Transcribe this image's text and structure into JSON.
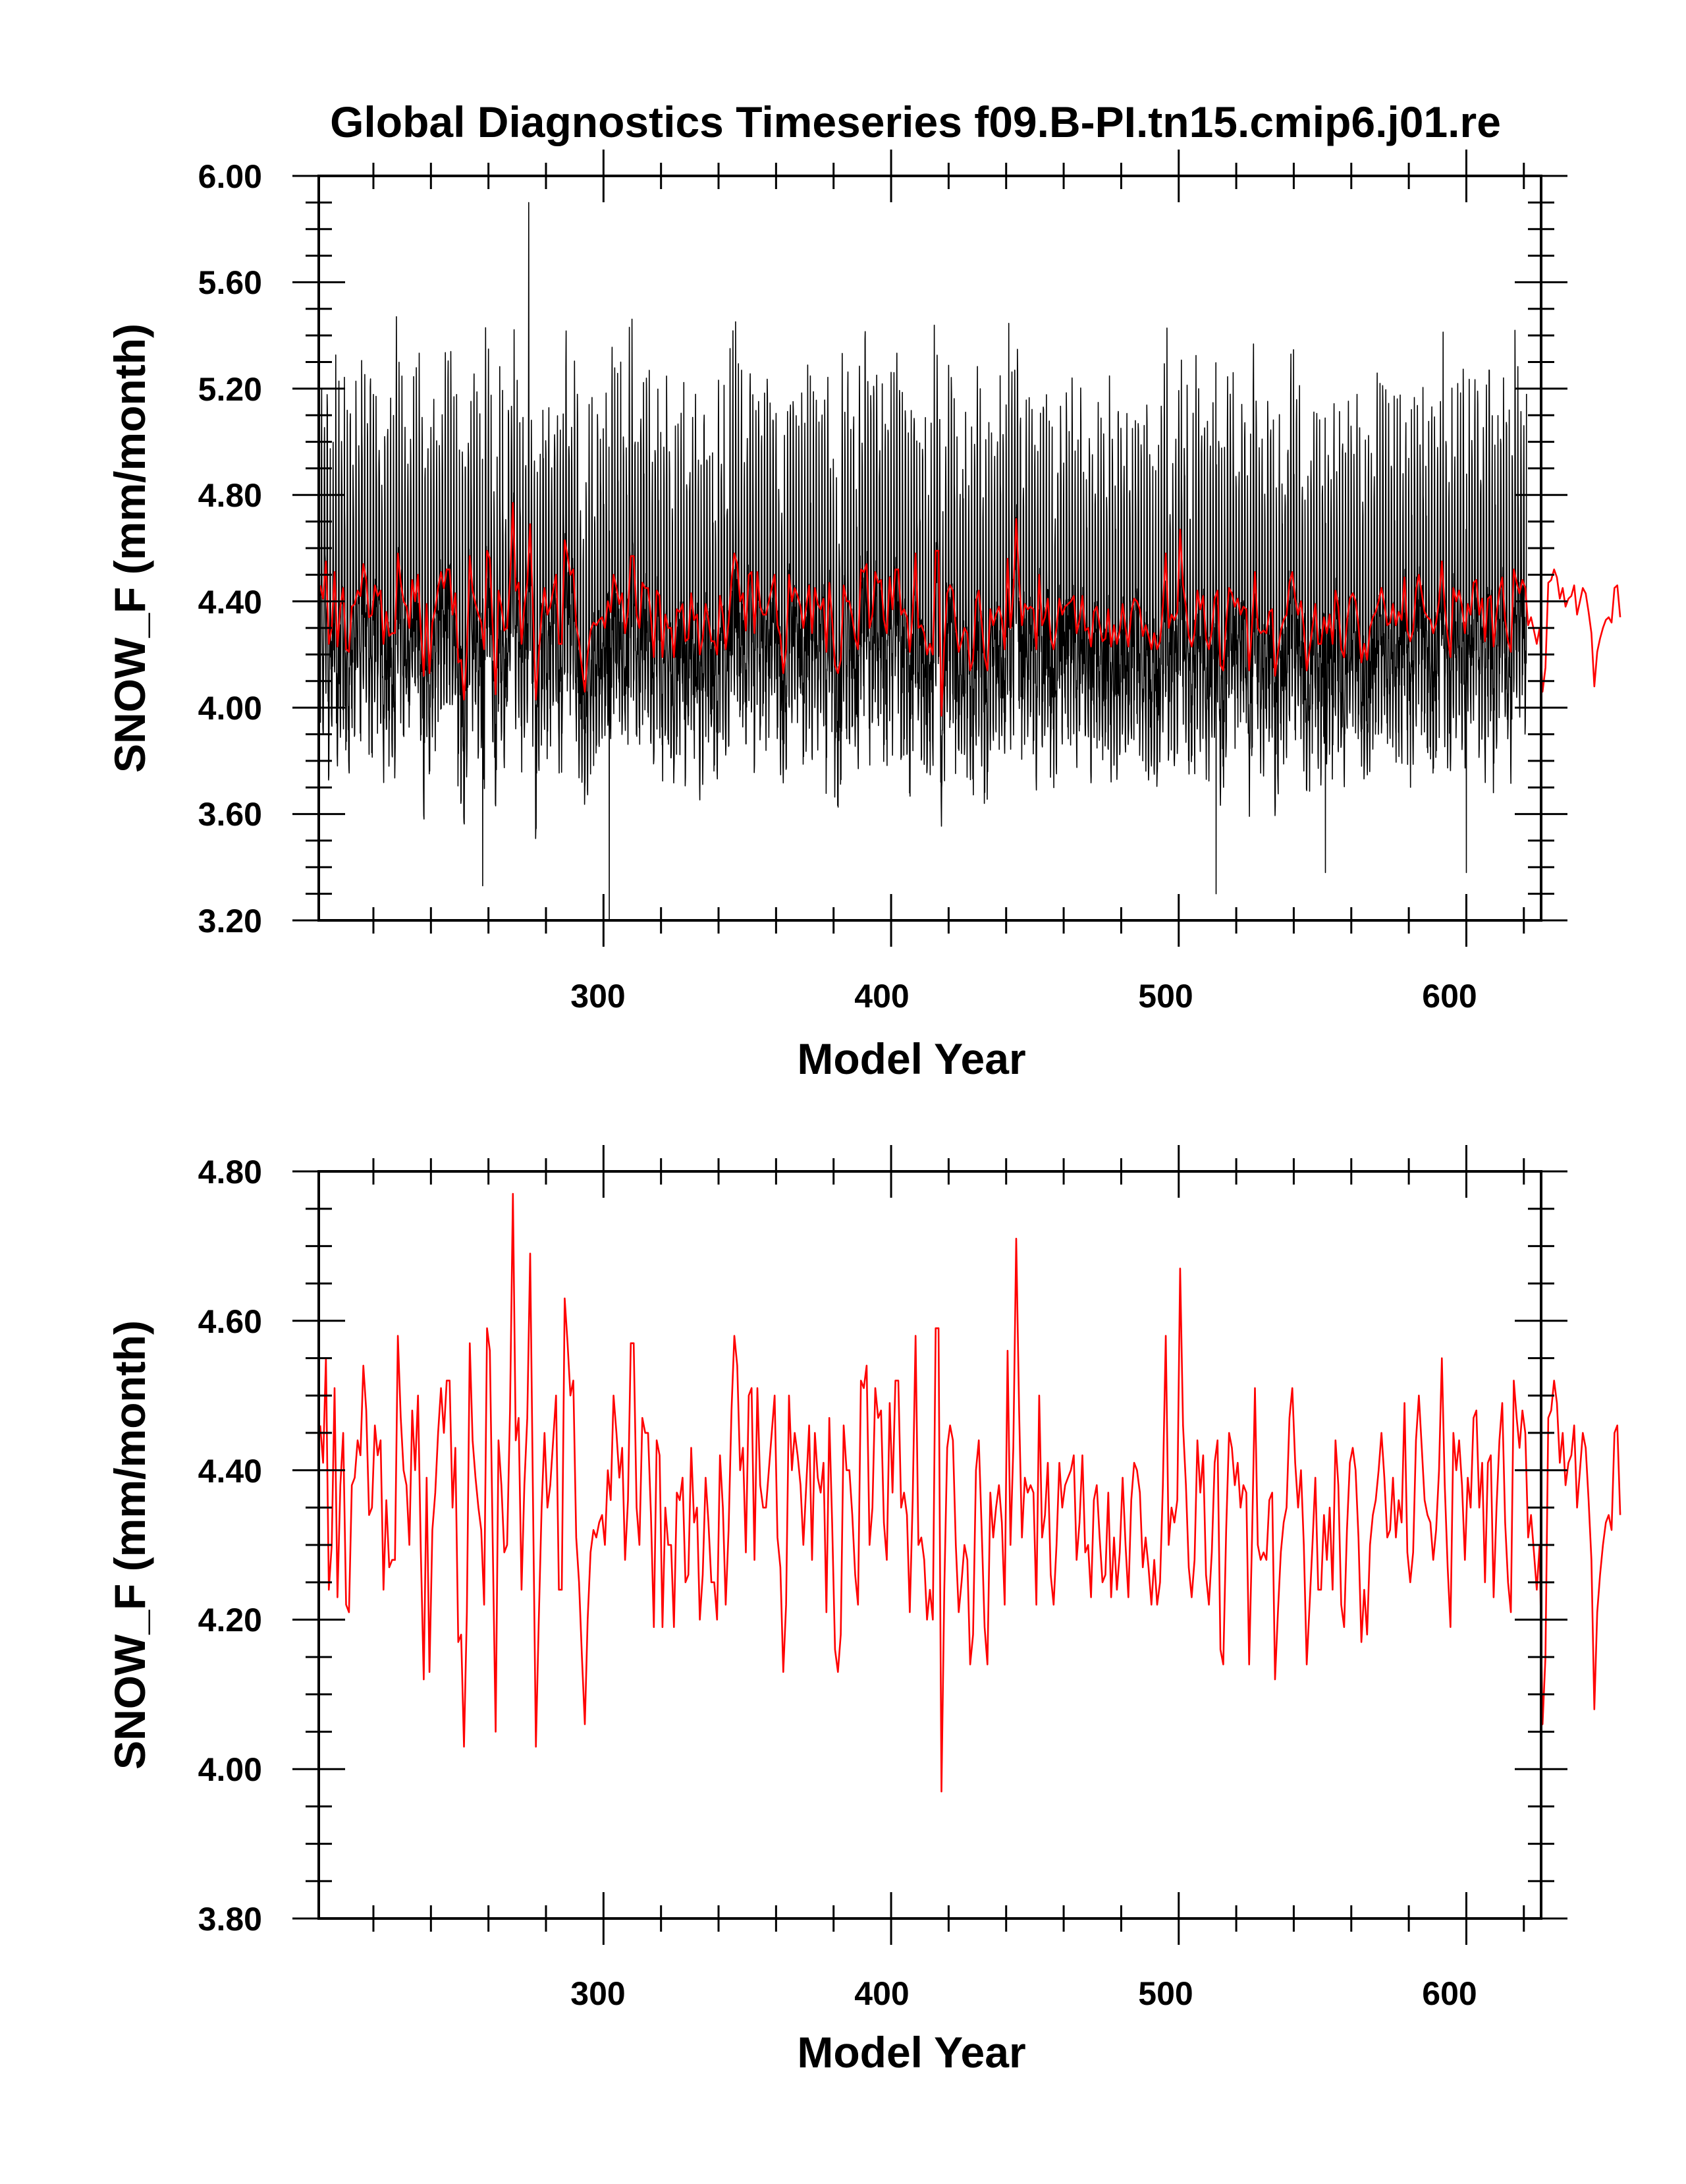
{
  "chart_data": [
    {
      "type": "line",
      "title": "Global Diagnostics Timeseries f09.B-PI.tn15.cmip6.j01.re",
      "xlabel": "Model Year",
      "ylabel": "SNOW_F (mm/month)",
      "xlim": [
        201,
        626
      ],
      "ylim": [
        3.2,
        6.0
      ],
      "xticks": [
        "300",
        "400",
        "500",
        "600"
      ],
      "yticks": [
        "3.20",
        "3.60",
        "4.00",
        "4.40",
        "4.80",
        "5.20",
        "5.60",
        "6.00"
      ],
      "grid": false,
      "series": [
        {
          "kind": "monthly",
          "color": "#000000",
          "x_start": 201,
          "x_end": 621,
          "mean": 4.33,
          "typical_min": 3.95,
          "typical_max": 5.25,
          "notable_points": [
            {
              "x": 274,
              "y": 5.9
            },
            {
              "x": 302,
              "y": 3.2
            },
            {
              "x": 258,
              "y": 3.33
            },
            {
              "x": 513,
              "y": 3.3
            },
            {
              "x": 551,
              "y": 3.38
            },
            {
              "x": 600,
              "y": 3.38
            }
          ]
        },
        {
          "kind": "annual",
          "color": "#ff0000",
          "x_start": 201,
          "values": [
            4.46,
            4.41,
            4.55,
            4.24,
            4.3,
            4.51,
            4.23,
            4.38,
            4.45,
            4.22,
            4.21,
            4.38,
            4.39,
            4.44,
            4.42,
            4.54,
            4.48,
            4.34,
            4.35,
            4.46,
            4.42,
            4.44,
            4.24,
            4.36,
            4.27,
            4.28,
            4.28,
            4.58,
            4.47,
            4.4,
            4.38,
            4.3,
            4.48,
            4.4,
            4.5,
            4.29,
            4.12,
            4.39,
            4.13,
            4.32,
            4.37,
            4.45,
            4.51,
            4.45,
            4.52,
            4.52,
            4.35,
            4.43,
            4.17,
            4.18,
            4.03,
            4.21,
            4.57,
            4.44,
            4.39,
            4.35,
            4.32,
            4.22,
            4.59,
            4.56,
            4.3,
            4.05,
            4.44,
            4.38,
            4.29,
            4.3,
            4.48,
            4.77,
            4.44,
            4.47,
            4.24,
            4.38,
            4.47,
            4.69,
            4.36,
            4.03,
            4.2,
            4.35,
            4.45,
            4.35,
            4.38,
            4.44,
            4.5,
            4.24,
            4.24,
            4.63,
            4.57,
            4.5,
            4.52,
            4.31,
            4.25,
            4.15,
            4.06,
            4.2,
            4.29,
            4.32,
            4.31,
            4.33,
            4.34,
            4.3,
            4.4,
            4.36,
            4.5,
            4.45,
            4.39,
            4.43,
            4.28,
            4.36,
            4.57,
            4.57,
            4.35,
            4.3,
            4.47,
            4.45,
            4.45,
            4.34,
            4.19,
            4.44,
            4.42,
            4.19,
            4.35,
            4.3,
            4.3,
            4.19,
            4.37,
            4.36,
            4.39,
            4.25,
            4.26,
            4.43,
            4.33,
            4.35,
            4.2,
            4.26,
            4.39,
            4.33,
            4.25,
            4.25,
            4.2,
            4.42,
            4.35,
            4.22,
            4.32,
            4.48,
            4.58,
            4.54,
            4.4,
            4.43,
            4.29,
            4.5,
            4.51,
            4.28,
            4.51,
            4.38,
            4.35,
            4.35,
            4.4,
            4.45,
            4.5,
            4.31,
            4.27,
            4.13,
            4.22,
            4.5,
            4.4,
            4.45,
            4.42,
            4.38,
            4.3,
            4.38,
            4.46,
            4.28,
            4.45,
            4.39,
            4.37,
            4.41,
            4.21,
            4.47,
            4.33,
            4.16,
            4.13,
            4.18,
            4.46,
            4.4,
            4.4,
            4.34,
            4.26,
            4.22,
            4.52,
            4.51,
            4.54,
            4.3,
            4.35,
            4.51,
            4.47,
            4.48,
            4.33,
            4.28,
            4.49,
            4.37,
            4.52,
            4.52,
            4.35,
            4.37,
            4.34,
            4.21,
            4.36,
            4.58,
            4.3,
            4.31,
            4.28,
            4.2,
            4.24,
            4.2,
            4.59,
            4.59,
            3.97,
            4.24,
            4.43,
            4.46,
            4.44,
            4.3,
            4.21,
            4.25,
            4.3,
            4.28,
            4.14,
            4.18,
            4.4,
            4.44,
            4.32,
            4.19,
            4.14,
            4.37,
            4.31,
            4.35,
            4.38,
            4.33,
            4.22,
            4.56,
            4.3,
            4.43,
            4.71,
            4.48,
            4.31,
            4.39,
            4.37,
            4.38,
            4.37,
            4.22,
            4.5,
            4.31,
            4.34,
            4.41,
            4.26,
            4.22,
            4.3,
            4.41,
            4.35,
            4.38,
            4.39,
            4.4,
            4.42,
            4.28,
            4.33,
            4.42,
            4.29,
            4.3,
            4.23,
            4.36,
            4.38,
            4.31,
            4.25,
            4.26,
            4.37,
            4.23,
            4.31,
            4.24,
            4.29,
            4.39,
            4.3,
            4.23,
            4.36,
            4.41,
            4.4,
            4.37,
            4.27,
            4.31,
            4.27,
            4.22,
            4.28,
            4.22,
            4.25,
            4.38,
            4.58,
            4.3,
            4.35,
            4.33,
            4.36,
            4.67,
            4.46,
            4.38,
            4.27,
            4.23,
            4.28,
            4.44,
            4.37,
            4.42,
            4.26,
            4.22,
            4.29,
            4.41,
            4.44,
            4.16,
            4.14,
            4.32,
            4.45,
            4.43,
            4.38,
            4.41,
            4.35,
            4.38,
            4.37,
            4.14,
            4.31,
            4.51,
            4.3,
            4.28,
            4.29,
            4.28,
            4.36,
            4.37,
            4.12,
            4.21,
            4.29,
            4.33,
            4.35,
            4.47,
            4.51,
            4.41,
            4.35,
            4.4,
            4.3,
            4.14,
            4.22,
            4.3,
            4.39,
            4.24,
            4.24,
            4.34,
            4.28,
            4.35,
            4.24,
            4.44,
            4.38,
            4.22,
            4.19,
            4.32,
            4.41,
            4.43,
            4.4,
            4.31,
            4.17,
            4.24,
            4.18,
            4.3,
            4.34,
            4.36,
            4.4,
            4.45,
            4.39,
            4.31,
            4.32,
            4.39,
            4.31,
            4.36,
            4.33,
            4.49,
            4.29,
            4.25,
            4.29,
            4.44,
            4.5,
            4.43,
            4.36,
            4.34,
            4.33,
            4.28,
            4.32,
            4.4,
            4.55,
            4.38,
            4.27,
            4.19,
            4.45,
            4.4,
            4.44,
            4.38,
            4.28,
            4.39,
            4.35,
            4.47,
            4.48,
            4.35,
            4.41,
            4.25,
            4.41,
            4.42,
            4.23,
            4.35,
            4.44,
            4.49,
            4.33,
            4.25,
            4.21,
            4.52,
            4.47,
            4.43,
            4.48,
            4.45,
            4.31,
            4.34,
            4.29,
            4.24,
            4.3,
            4.06,
            4.15,
            4.47,
            4.48,
            4.52,
            4.49,
            4.41,
            4.45,
            4.38,
            4.41,
            4.42,
            4.46,
            4.35,
            4.4,
            4.45,
            4.43,
            4.36,
            4.28,
            4.08,
            4.21,
            4.26,
            4.3,
            4.33,
            4.34,
            4.32,
            4.45,
            4.46,
            4.34
          ]
        }
      ]
    },
    {
      "type": "line",
      "title": "",
      "xlabel": "Model Year",
      "ylabel": "SNOW_F (mm/month)",
      "xlim": [
        201,
        626
      ],
      "ylim": [
        3.8,
        4.8
      ],
      "xticks": [
        "300",
        "400",
        "500",
        "600"
      ],
      "yticks": [
        "3.80",
        "4.00",
        "4.20",
        "4.40",
        "4.60",
        "4.80"
      ],
      "grid": false,
      "series": [
        {
          "kind": "annual",
          "color": "#ff0000",
          "source": "chart_data.0.series.1.values"
        }
      ]
    }
  ]
}
